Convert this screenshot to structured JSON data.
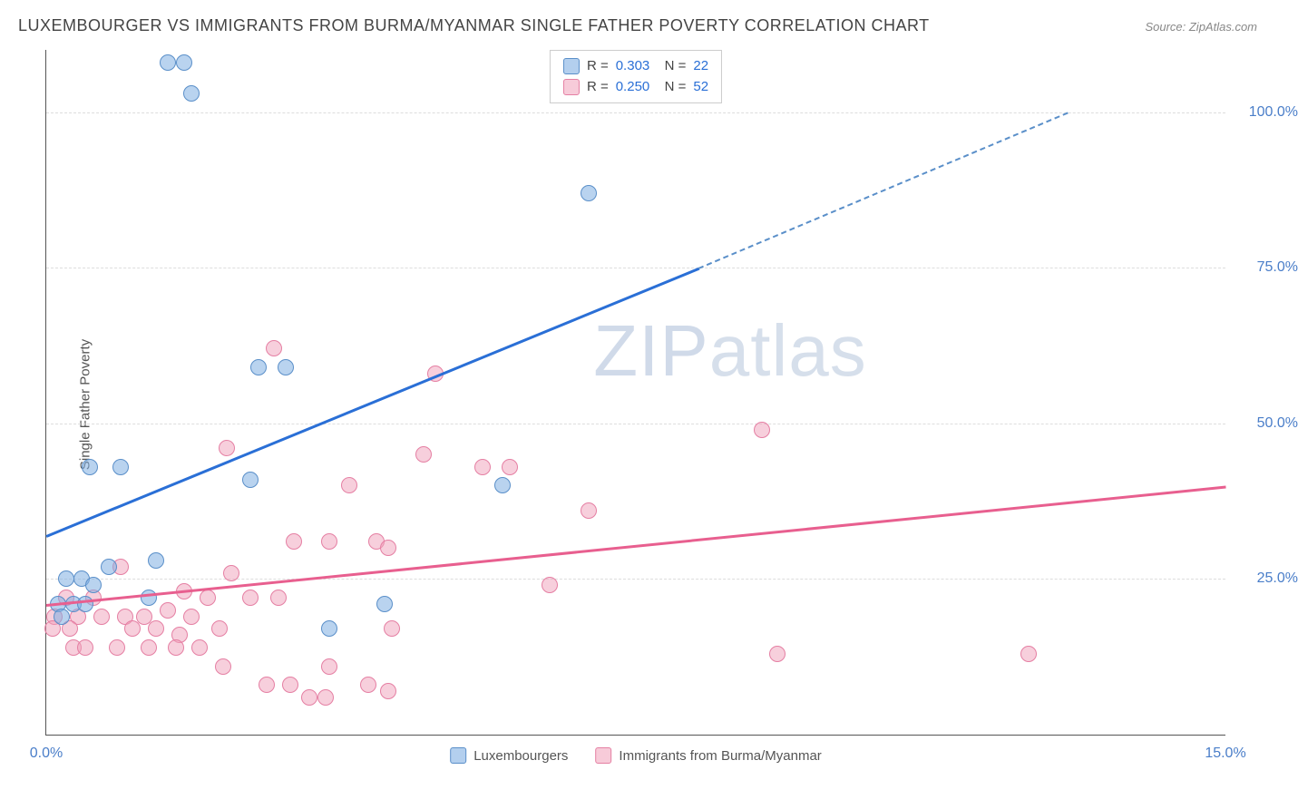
{
  "title": "LUXEMBOURGER VS IMMIGRANTS FROM BURMA/MYANMAR SINGLE FATHER POVERTY CORRELATION CHART",
  "source": "Source: ZipAtlas.com",
  "ylabel": "Single Father Poverty",
  "watermark_a": "ZIP",
  "watermark_b": "atlas",
  "chart": {
    "type": "scatter",
    "xlim": [
      0,
      15
    ],
    "ylim": [
      0,
      110
    ],
    "xticks": [
      {
        "v": 0,
        "label": "0.0%"
      },
      {
        "v": 15,
        "label": "15.0%"
      }
    ],
    "yticks": [
      {
        "v": 25,
        "label": "25.0%"
      },
      {
        "v": 50,
        "label": "50.0%"
      },
      {
        "v": 75,
        "label": "75.0%"
      },
      {
        "v": 100,
        "label": "100.0%"
      }
    ],
    "grid_color": "#dddddd",
    "background_color": "#ffffff",
    "axis_color": "#555555",
    "tick_color": "#4a7ec9"
  },
  "series": {
    "blue": {
      "label": "Luxembourgers",
      "R": "0.303",
      "N": "22",
      "color_fill": "rgba(128,175,226,0.55)",
      "color_stroke": "#5a8fc9",
      "trend_color": "#2a6fd6",
      "trend": {
        "x1": 0,
        "y1": 32,
        "x2": 8.3,
        "y2": 75,
        "dash_to_x": 13.0,
        "dash_to_y": 100
      },
      "points": [
        {
          "x": 1.55,
          "y": 108
        },
        {
          "x": 1.75,
          "y": 108
        },
        {
          "x": 1.85,
          "y": 103
        },
        {
          "x": 6.9,
          "y": 87
        },
        {
          "x": 2.7,
          "y": 59
        },
        {
          "x": 3.05,
          "y": 59
        },
        {
          "x": 0.55,
          "y": 43
        },
        {
          "x": 0.95,
          "y": 43
        },
        {
          "x": 2.6,
          "y": 41
        },
        {
          "x": 5.8,
          "y": 40
        },
        {
          "x": 1.4,
          "y": 28
        },
        {
          "x": 0.25,
          "y": 25
        },
        {
          "x": 0.45,
          "y": 25
        },
        {
          "x": 0.6,
          "y": 24
        },
        {
          "x": 0.8,
          "y": 27
        },
        {
          "x": 0.15,
          "y": 21
        },
        {
          "x": 0.35,
          "y": 21
        },
        {
          "x": 0.5,
          "y": 21
        },
        {
          "x": 1.3,
          "y": 22
        },
        {
          "x": 0.2,
          "y": 19
        },
        {
          "x": 4.3,
          "y": 21
        },
        {
          "x": 3.6,
          "y": 17
        }
      ]
    },
    "pink": {
      "label": "Immigrants from Burma/Myanmar",
      "R": "0.250",
      "N": "52",
      "color_fill": "rgba(240,160,185,0.5)",
      "color_stroke": "#e57fa3",
      "trend_color": "#e85f8f",
      "trend": {
        "x1": 0,
        "y1": 21,
        "x2": 15,
        "y2": 40
      },
      "points": [
        {
          "x": 2.9,
          "y": 62
        },
        {
          "x": 4.95,
          "y": 58
        },
        {
          "x": 9.1,
          "y": 49
        },
        {
          "x": 2.3,
          "y": 46
        },
        {
          "x": 4.8,
          "y": 45
        },
        {
          "x": 5.55,
          "y": 43
        },
        {
          "x": 5.9,
          "y": 43
        },
        {
          "x": 3.85,
          "y": 40
        },
        {
          "x": 6.9,
          "y": 36
        },
        {
          "x": 3.15,
          "y": 31
        },
        {
          "x": 3.6,
          "y": 31
        },
        {
          "x": 4.2,
          "y": 31
        },
        {
          "x": 4.35,
          "y": 30
        },
        {
          "x": 0.95,
          "y": 27
        },
        {
          "x": 2.35,
          "y": 26
        },
        {
          "x": 6.4,
          "y": 24
        },
        {
          "x": 0.25,
          "y": 22
        },
        {
          "x": 0.6,
          "y": 22
        },
        {
          "x": 1.75,
          "y": 23
        },
        {
          "x": 2.05,
          "y": 22
        },
        {
          "x": 2.6,
          "y": 22
        },
        {
          "x": 2.95,
          "y": 22
        },
        {
          "x": 0.1,
          "y": 19
        },
        {
          "x": 0.4,
          "y": 19
        },
        {
          "x": 0.7,
          "y": 19
        },
        {
          "x": 1.0,
          "y": 19
        },
        {
          "x": 1.25,
          "y": 19
        },
        {
          "x": 1.55,
          "y": 20
        },
        {
          "x": 1.85,
          "y": 19
        },
        {
          "x": 0.08,
          "y": 17
        },
        {
          "x": 0.3,
          "y": 17
        },
        {
          "x": 1.1,
          "y": 17
        },
        {
          "x": 1.4,
          "y": 17
        },
        {
          "x": 1.7,
          "y": 16
        },
        {
          "x": 2.2,
          "y": 17
        },
        {
          "x": 4.4,
          "y": 17
        },
        {
          "x": 0.35,
          "y": 14
        },
        {
          "x": 0.5,
          "y": 14
        },
        {
          "x": 0.9,
          "y": 14
        },
        {
          "x": 1.3,
          "y": 14
        },
        {
          "x": 1.65,
          "y": 14
        },
        {
          "x": 1.95,
          "y": 14
        },
        {
          "x": 2.25,
          "y": 11
        },
        {
          "x": 3.6,
          "y": 11
        },
        {
          "x": 9.3,
          "y": 13
        },
        {
          "x": 12.5,
          "y": 13
        },
        {
          "x": 2.8,
          "y": 8
        },
        {
          "x": 3.1,
          "y": 8
        },
        {
          "x": 3.35,
          "y": 6
        },
        {
          "x": 3.55,
          "y": 6
        },
        {
          "x": 4.1,
          "y": 8
        },
        {
          "x": 4.35,
          "y": 7
        }
      ]
    }
  }
}
